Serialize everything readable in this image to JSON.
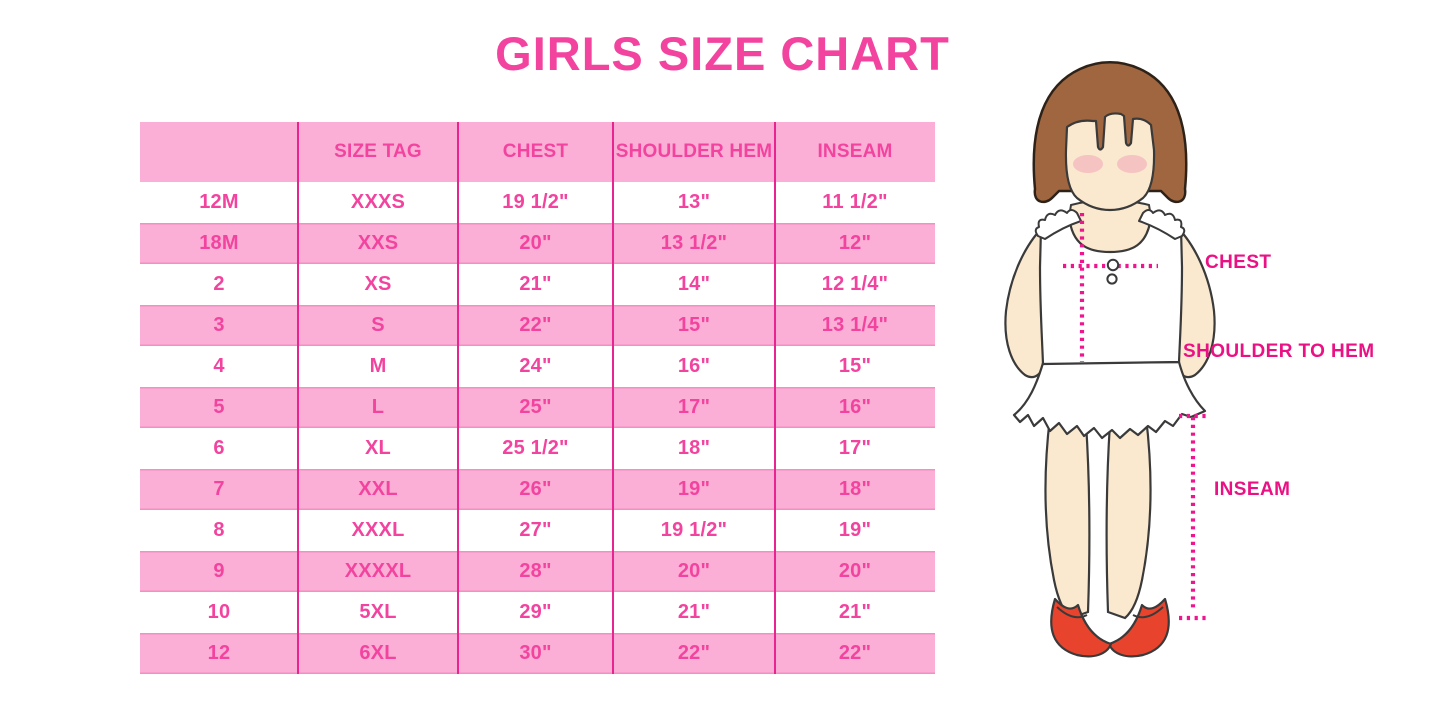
{
  "title": "GIRLS SIZE CHART",
  "table": {
    "headers": [
      "",
      "SIZE TAG",
      "CHEST",
      "SHOULDER HEM",
      "INSEAM"
    ],
    "rows": [
      [
        "12M",
        "XXXS",
        "19 1/2\"",
        "13\"",
        "11 1/2\""
      ],
      [
        "18M",
        "XXS",
        "20\"",
        "13 1/2\"",
        "12\""
      ],
      [
        "2",
        "XS",
        "21\"",
        "14\"",
        "12 1/4\""
      ],
      [
        "3",
        "S",
        "22\"",
        "15\"",
        "13 1/4\""
      ],
      [
        "4",
        "M",
        "24\"",
        "16\"",
        "15\""
      ],
      [
        "5",
        "L",
        "25\"",
        "17\"",
        "16\""
      ],
      [
        "6",
        "XL",
        "25 1/2\"",
        "18\"",
        "17\""
      ],
      [
        "7",
        "XXL",
        "26\"",
        "19\"",
        "18\""
      ],
      [
        "8",
        "XXXL",
        "27\"",
        "19 1/2\"",
        "19\""
      ],
      [
        "9",
        "XXXXL",
        "28\"",
        "20\"",
        "20\""
      ],
      [
        "10",
        "5XL",
        "29\"",
        "21\"",
        "21\""
      ],
      [
        "12",
        "6XL",
        "30\"",
        "22\"",
        "22\""
      ]
    ]
  },
  "figure": {
    "chest_label": "CHEST",
    "shoulder_to_hem_label": "SHOULDER TO HEM",
    "inseam_label": "INSEAM"
  },
  "colors": {
    "accent_pink": "#F2449F",
    "row_pink": "#FBAFD6",
    "divider_magenta": "#E72490",
    "label_magenta": "#EA1184",
    "dotted_line_pink": "#F0158F",
    "hair_brown": "#A0663F",
    "skin": "#FBE9CF",
    "blush": "#F5C3C2",
    "shoe_red": "#E8442D",
    "outline_dark": "#3A3A3A"
  }
}
